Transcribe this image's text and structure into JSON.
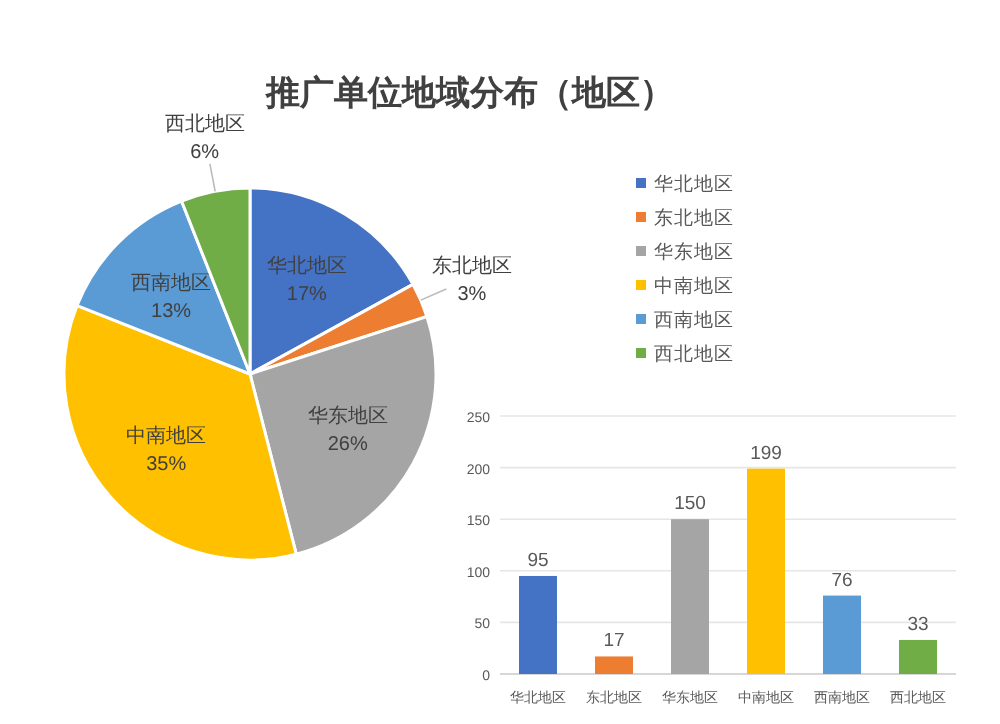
{
  "chart_data": [
    {
      "type": "pie",
      "title": "推广单位地域分布（地区）",
      "categories": [
        "华北地区",
        "东北地区",
        "华东地区",
        "中南地区",
        "西南地区",
        "西北地区"
      ],
      "values": [
        17,
        3,
        26,
        35,
        13,
        6
      ],
      "colors": [
        "#4472c4",
        "#ed7d31",
        "#a5a5a5",
        "#ffc000",
        "#5b9bd5",
        "#70ad47"
      ],
      "value_labels": [
        "17%",
        "3%",
        "26%",
        "35%",
        "13%",
        "6%"
      ],
      "legend": "right"
    },
    {
      "type": "bar",
      "categories": [
        "华北地区",
        "东北地区",
        "华东地区",
        "中南地区",
        "西南地区",
        "西北地区"
      ],
      "values": [
        95,
        17,
        150,
        199,
        76,
        33
      ],
      "colors": [
        "#4472c4",
        "#ed7d31",
        "#a5a5a5",
        "#ffc000",
        "#5b9bd5",
        "#70ad47"
      ],
      "ylim": [
        0,
        250
      ],
      "yticks": [
        0,
        50,
        100,
        150,
        200,
        250
      ],
      "grid": "y",
      "data_labels": true
    }
  ]
}
